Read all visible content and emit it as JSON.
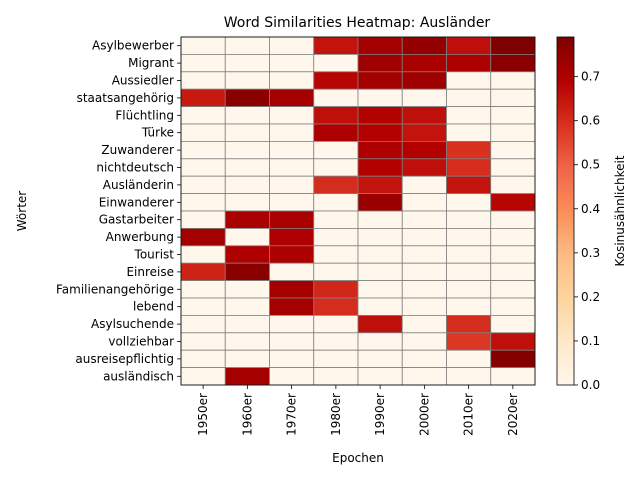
{
  "chart_data": {
    "type": "heatmap",
    "title": "Word Similarities Heatmap: Ausländer",
    "xlabel": "Epochen",
    "ylabel": "Wörter",
    "colorbar_label": "Kosinusähnlichkeit",
    "colormap": "OrRd",
    "value_range": [
      0,
      0.79
    ],
    "colorbar_ticks": [
      "0.0",
      "0.1",
      "0.2",
      "0.3",
      "0.4",
      "0.5",
      "0.6",
      "0.7"
    ],
    "x": [
      "1950er",
      "1960er",
      "1970er",
      "1980er",
      "1990er",
      "2000er",
      "2010er",
      "2020er"
    ],
    "y": [
      "Asylbewerber",
      "Migrant",
      "Aussiedler",
      "staatsangehörig",
      "Flüchtling",
      "Türke",
      "Zuwanderer",
      "nichtdeutsch",
      "Ausländerin",
      "Einwanderer",
      "Gastarbeiter",
      "Anwerbung",
      "Tourist",
      "Einreise",
      "Familienangehörige",
      "lebend",
      "Asylsuchende",
      "vollziehbar",
      "ausreisepflichtig",
      "ausländisch"
    ],
    "values": [
      [
        0,
        0,
        0,
        0.65,
        0.72,
        0.75,
        0.66,
        0.79
      ],
      [
        0,
        0,
        0,
        0,
        0.73,
        0.71,
        0.7,
        0.77
      ],
      [
        0,
        0,
        0,
        0.68,
        0.72,
        0.73,
        0,
        0
      ],
      [
        0.64,
        0.77,
        0.72,
        0,
        0,
        0,
        0,
        0
      ],
      [
        0,
        0,
        0,
        0.66,
        0.69,
        0.66,
        0,
        0
      ],
      [
        0,
        0,
        0,
        0.7,
        0.69,
        0.65,
        0,
        0
      ],
      [
        0,
        0,
        0,
        0,
        0.7,
        0.69,
        0.59,
        0
      ],
      [
        0,
        0,
        0,
        0,
        0.69,
        0.66,
        0.6,
        0
      ],
      [
        0,
        0,
        0,
        0.6,
        0.65,
        0,
        0.65,
        0
      ],
      [
        0,
        0,
        0,
        0,
        0.74,
        0,
        0,
        0.68
      ],
      [
        0,
        0.71,
        0.71,
        0,
        0,
        0,
        0,
        0
      ],
      [
        0.72,
        0,
        0.7,
        0,
        0,
        0,
        0,
        0
      ],
      [
        0,
        0.7,
        0.7,
        0,
        0,
        0,
        0,
        0
      ],
      [
        0.62,
        0.77,
        0,
        0,
        0,
        0,
        0,
        0
      ],
      [
        0,
        0,
        0.72,
        0.61,
        0,
        0,
        0,
        0
      ],
      [
        0,
        0,
        0.72,
        0.6,
        0,
        0,
        0,
        0
      ],
      [
        0,
        0,
        0,
        0,
        0.66,
        0,
        0.6,
        0
      ],
      [
        0,
        0,
        0,
        0,
        0,
        0,
        0.58,
        0.66
      ],
      [
        0,
        0,
        0,
        0,
        0,
        0,
        0,
        0.78
      ],
      [
        0,
        0.72,
        0,
        0,
        0,
        0,
        0,
        0
      ]
    ]
  }
}
